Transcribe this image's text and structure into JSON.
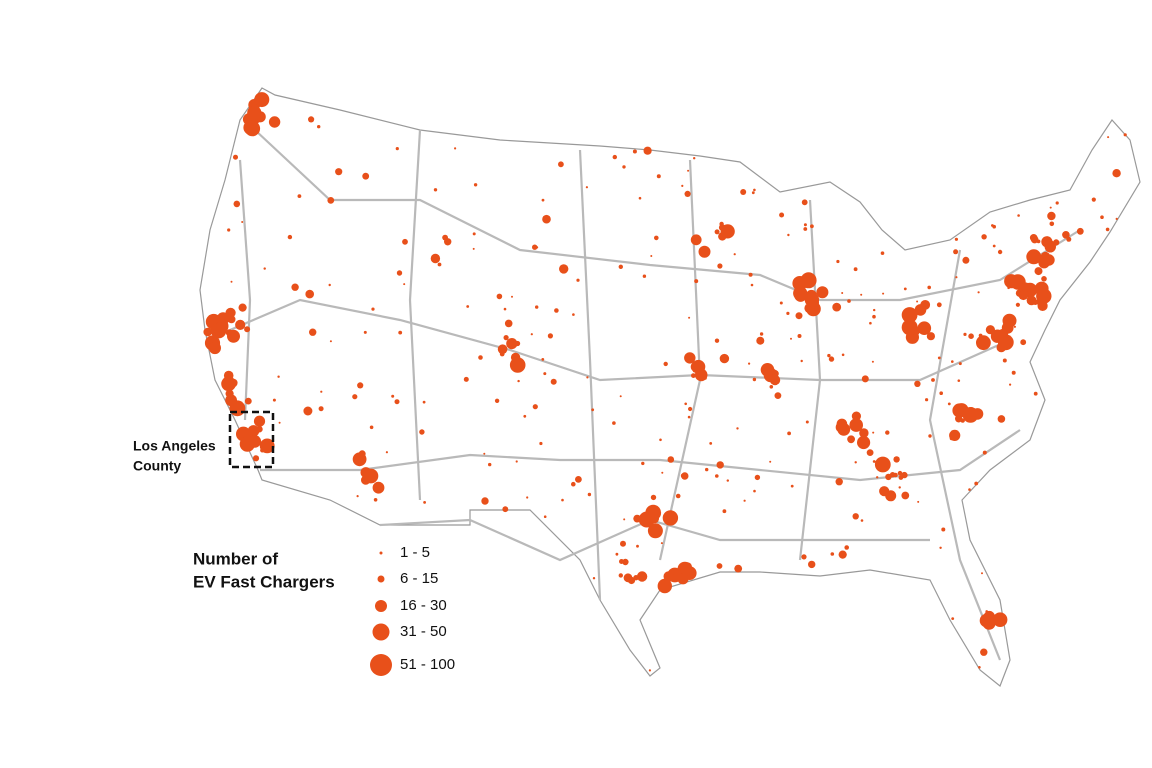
{
  "annotation": {
    "lines": [
      "Los Angeles",
      "County"
    ]
  },
  "legend": {
    "title": [
      "Number of",
      "EV Fast Chargers"
    ],
    "items": [
      "1 - 5",
      "6 - 15",
      "16 - 30",
      "31 - 50",
      "51 - 100"
    ]
  }
}
